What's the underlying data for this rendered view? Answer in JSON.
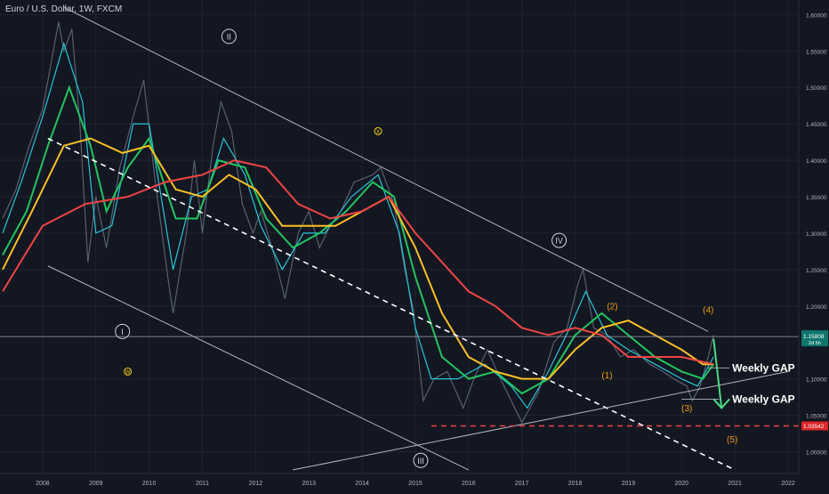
{
  "chart_data": {
    "type": "line",
    "title": "Euro / U.S. Dollar, 1W, FXCM",
    "x_ticks": [
      "2008",
      "2009",
      "2010",
      "2011",
      "2012",
      "2013",
      "2014",
      "2015",
      "2016",
      "2017",
      "2018",
      "2019",
      "2020",
      "2021",
      "2022"
    ],
    "y_ticks": [
      "1.60000",
      "1.55000",
      "1.50000",
      "1.45000",
      "1.40000",
      "1.35000",
      "1.30000",
      "1.25000",
      "1.20000",
      "1.10000",
      "1.05000",
      "1.00000"
    ],
    "xlim": [
      2007.2,
      2022.2
    ],
    "ylim": [
      0.97,
      1.62
    ],
    "price_label": {
      "value": "1.15808",
      "sub": "2d 5h",
      "y": 1.158
    },
    "support_label": {
      "value": "1.03542",
      "y": 1.0354
    },
    "wave_labels": [
      {
        "text": "I",
        "x": 2009.5,
        "y": 1.165,
        "style": "circle"
      },
      {
        "text": "II",
        "x": 2011.5,
        "y": 1.57,
        "style": "circle"
      },
      {
        "text": "III",
        "x": 2015.1,
        "y": 0.988,
        "style": "circle"
      },
      {
        "text": "IV",
        "x": 2017.7,
        "y": 1.29,
        "style": "circle"
      },
      {
        "text": "W",
        "x": 2009.6,
        "y": 1.11,
        "style": "yellow"
      },
      {
        "text": "X",
        "x": 2014.3,
        "y": 1.44,
        "style": "yellow"
      },
      {
        "text": "(1)",
        "x": 2018.6,
        "y": 1.105,
        "style": "orange"
      },
      {
        "text": "(2)",
        "x": 2018.7,
        "y": 1.2,
        "style": "orange"
      },
      {
        "text": "(3)",
        "x": 2020.1,
        "y": 1.06,
        "style": "orange"
      },
      {
        "text": "(4)",
        "x": 2020.5,
        "y": 1.195,
        "style": "orange"
      },
      {
        "text": "(5)",
        "x": 2020.95,
        "y": 1.017,
        "style": "orange"
      }
    ],
    "annotations": [
      {
        "text": "Weekly GAP",
        "x": 2020.95,
        "y": 1.115
      },
      {
        "text": "Weekly GAP",
        "x": 2020.95,
        "y": 1.072
      }
    ],
    "trendlines": [
      {
        "name": "upper",
        "from": [
          2008.4,
          1.61
        ],
        "to": [
          2020.5,
          1.165
        ],
        "color": "#b2b5be",
        "dash": false
      },
      {
        "name": "lower-parallel",
        "from": [
          2008.1,
          1.255
        ],
        "to": [
          2016.0,
          0.975
        ],
        "color": "#b2b5be",
        "dash": false
      },
      {
        "name": "mid-dashed",
        "from": [
          2008.1,
          1.43
        ],
        "to": [
          2021.0,
          0.975
        ],
        "color": "#ffffff",
        "dash": true
      },
      {
        "name": "rising-support",
        "from": [
          2012.7,
          0.975
        ],
        "to": [
          2022.0,
          1.11
        ],
        "color": "#b2b5be",
        "dash": false
      }
    ],
    "price": [
      [
        2007.25,
        1.32
      ],
      [
        2007.5,
        1.36
      ],
      [
        2007.75,
        1.42
      ],
      [
        2008.0,
        1.47
      ],
      [
        2008.2,
        1.55
      ],
      [
        2008.3,
        1.59
      ],
      [
        2008.4,
        1.55
      ],
      [
        2008.55,
        1.58
      ],
      [
        2008.7,
        1.45
      ],
      [
        2008.85,
        1.26
      ],
      [
        2009.0,
        1.35
      ],
      [
        2009.2,
        1.28
      ],
      [
        2009.45,
        1.39
      ],
      [
        2009.7,
        1.46
      ],
      [
        2009.9,
        1.51
      ],
      [
        2010.1,
        1.38
      ],
      [
        2010.35,
        1.24
      ],
      [
        2010.45,
        1.19
      ],
      [
        2010.7,
        1.3
      ],
      [
        2010.85,
        1.4
      ],
      [
        2011.0,
        1.3
      ],
      [
        2011.2,
        1.42
      ],
      [
        2011.35,
        1.48
      ],
      [
        2011.55,
        1.44
      ],
      [
        2011.75,
        1.34
      ],
      [
        2011.95,
        1.3
      ],
      [
        2012.1,
        1.33
      ],
      [
        2012.35,
        1.27
      ],
      [
        2012.55,
        1.21
      ],
      [
        2012.8,
        1.3
      ],
      [
        2013.0,
        1.33
      ],
      [
        2013.2,
        1.28
      ],
      [
        2013.4,
        1.31
      ],
      [
        2013.6,
        1.33
      ],
      [
        2013.85,
        1.37
      ],
      [
        2014.2,
        1.38
      ],
      [
        2014.35,
        1.39
      ],
      [
        2014.6,
        1.34
      ],
      [
        2014.8,
        1.25
      ],
      [
        2014.95,
        1.2
      ],
      [
        2015.15,
        1.07
      ],
      [
        2015.35,
        1.1
      ],
      [
        2015.6,
        1.11
      ],
      [
        2015.9,
        1.06
      ],
      [
        2016.1,
        1.1
      ],
      [
        2016.35,
        1.14
      ],
      [
        2016.6,
        1.1
      ],
      [
        2016.8,
        1.07
      ],
      [
        2017.0,
        1.04
      ],
      [
        2017.3,
        1.08
      ],
      [
        2017.6,
        1.15
      ],
      [
        2017.85,
        1.17
      ],
      [
        2018.05,
        1.23
      ],
      [
        2018.15,
        1.25
      ],
      [
        2018.35,
        1.17
      ],
      [
        2018.6,
        1.16
      ],
      [
        2018.85,
        1.13
      ],
      [
        2019.1,
        1.14
      ],
      [
        2019.4,
        1.12
      ],
      [
        2019.65,
        1.11
      ],
      [
        2019.85,
        1.1
      ],
      [
        2020.1,
        1.09
      ],
      [
        2020.2,
        1.07
      ],
      [
        2020.35,
        1.09
      ],
      [
        2020.5,
        1.13
      ],
      [
        2020.6,
        1.16
      ]
    ],
    "series": [
      {
        "name": "",
        "color": "#26c6da",
        "values": [
          [
            2007.25,
            1.3
          ],
          [
            2007.6,
            1.37
          ],
          [
            2008.0,
            1.46
          ],
          [
            2008.4,
            1.56
          ],
          [
            2008.75,
            1.48
          ],
          [
            2009.0,
            1.3
          ],
          [
            2009.3,
            1.31
          ],
          [
            2009.7,
            1.45
          ],
          [
            2010.0,
            1.45
          ],
          [
            2010.45,
            1.25
          ],
          [
            2010.8,
            1.35
          ],
          [
            2011.1,
            1.36
          ],
          [
            2011.4,
            1.43
          ],
          [
            2011.8,
            1.38
          ],
          [
            2012.1,
            1.31
          ],
          [
            2012.5,
            1.25
          ],
          [
            2012.9,
            1.3
          ],
          [
            2013.3,
            1.3
          ],
          [
            2013.8,
            1.35
          ],
          [
            2014.3,
            1.38
          ],
          [
            2014.7,
            1.3
          ],
          [
            2015.0,
            1.17
          ],
          [
            2015.3,
            1.1
          ],
          [
            2015.8,
            1.1
          ],
          [
            2016.3,
            1.12
          ],
          [
            2016.8,
            1.09
          ],
          [
            2017.1,
            1.06
          ],
          [
            2017.5,
            1.11
          ],
          [
            2017.9,
            1.17
          ],
          [
            2018.2,
            1.22
          ],
          [
            2018.6,
            1.16
          ],
          [
            2019.0,
            1.14
          ],
          [
            2019.5,
            1.12
          ],
          [
            2020.0,
            1.1
          ],
          [
            2020.3,
            1.09
          ],
          [
            2020.6,
            1.13
          ]
        ]
      },
      {
        "name": "",
        "color": "#22c55e",
        "values": [
          [
            2007.25,
            1.27
          ],
          [
            2007.7,
            1.33
          ],
          [
            2008.1,
            1.42
          ],
          [
            2008.5,
            1.5
          ],
          [
            2008.9,
            1.42
          ],
          [
            2009.2,
            1.33
          ],
          [
            2009.6,
            1.39
          ],
          [
            2010.0,
            1.43
          ],
          [
            2010.5,
            1.32
          ],
          [
            2010.9,
            1.32
          ],
          [
            2011.3,
            1.4
          ],
          [
            2011.8,
            1.39
          ],
          [
            2012.2,
            1.32
          ],
          [
            2012.7,
            1.28
          ],
          [
            2013.2,
            1.3
          ],
          [
            2013.7,
            1.33
          ],
          [
            2014.2,
            1.37
          ],
          [
            2014.6,
            1.35
          ],
          [
            2015.0,
            1.24
          ],
          [
            2015.5,
            1.13
          ],
          [
            2016.0,
            1.1
          ],
          [
            2016.5,
            1.11
          ],
          [
            2017.0,
            1.08
          ],
          [
            2017.5,
            1.1
          ],
          [
            2018.0,
            1.16
          ],
          [
            2018.5,
            1.19
          ],
          [
            2019.0,
            1.16
          ],
          [
            2019.5,
            1.13
          ],
          [
            2020.0,
            1.11
          ],
          [
            2020.4,
            1.1
          ],
          [
            2020.6,
            1.12
          ]
        ]
      },
      {
        "name": "",
        "color": "#fbbf24",
        "values": [
          [
            2007.25,
            1.25
          ],
          [
            2007.8,
            1.33
          ],
          [
            2008.4,
            1.42
          ],
          [
            2008.9,
            1.43
          ],
          [
            2009.5,
            1.41
          ],
          [
            2010.0,
            1.42
          ],
          [
            2010.5,
            1.36
          ],
          [
            2011.0,
            1.35
          ],
          [
            2011.5,
            1.38
          ],
          [
            2012.0,
            1.36
          ],
          [
            2012.5,
            1.31
          ],
          [
            2013.0,
            1.31
          ],
          [
            2013.5,
            1.31
          ],
          [
            2014.0,
            1.33
          ],
          [
            2014.5,
            1.35
          ],
          [
            2015.0,
            1.28
          ],
          [
            2015.5,
            1.19
          ],
          [
            2016.0,
            1.13
          ],
          [
            2016.5,
            1.11
          ],
          [
            2017.0,
            1.1
          ],
          [
            2017.5,
            1.1
          ],
          [
            2018.0,
            1.14
          ],
          [
            2018.5,
            1.17
          ],
          [
            2019.0,
            1.18
          ],
          [
            2019.5,
            1.16
          ],
          [
            2020.0,
            1.14
          ],
          [
            2020.4,
            1.12
          ],
          [
            2020.6,
            1.12
          ]
        ]
      },
      {
        "name": "",
        "color": "#ef4444",
        "values": [
          [
            2007.25,
            1.22
          ],
          [
            2008.0,
            1.31
          ],
          [
            2008.8,
            1.34
          ],
          [
            2009.6,
            1.35
          ],
          [
            2010.3,
            1.37
          ],
          [
            2011.0,
            1.38
          ],
          [
            2011.6,
            1.4
          ],
          [
            2012.2,
            1.39
          ],
          [
            2012.8,
            1.34
          ],
          [
            2013.4,
            1.32
          ],
          [
            2014.0,
            1.33
          ],
          [
            2014.5,
            1.35
          ],
          [
            2015.0,
            1.3
          ],
          [
            2015.5,
            1.26
          ],
          [
            2016.0,
            1.22
          ],
          [
            2016.5,
            1.2
          ],
          [
            2017.0,
            1.17
          ],
          [
            2017.5,
            1.16
          ],
          [
            2018.0,
            1.17
          ],
          [
            2018.5,
            1.16
          ],
          [
            2019.0,
            1.13
          ],
          [
            2019.5,
            1.13
          ],
          [
            2020.0,
            1.13
          ],
          [
            2020.6,
            1.12
          ]
        ]
      }
    ]
  }
}
